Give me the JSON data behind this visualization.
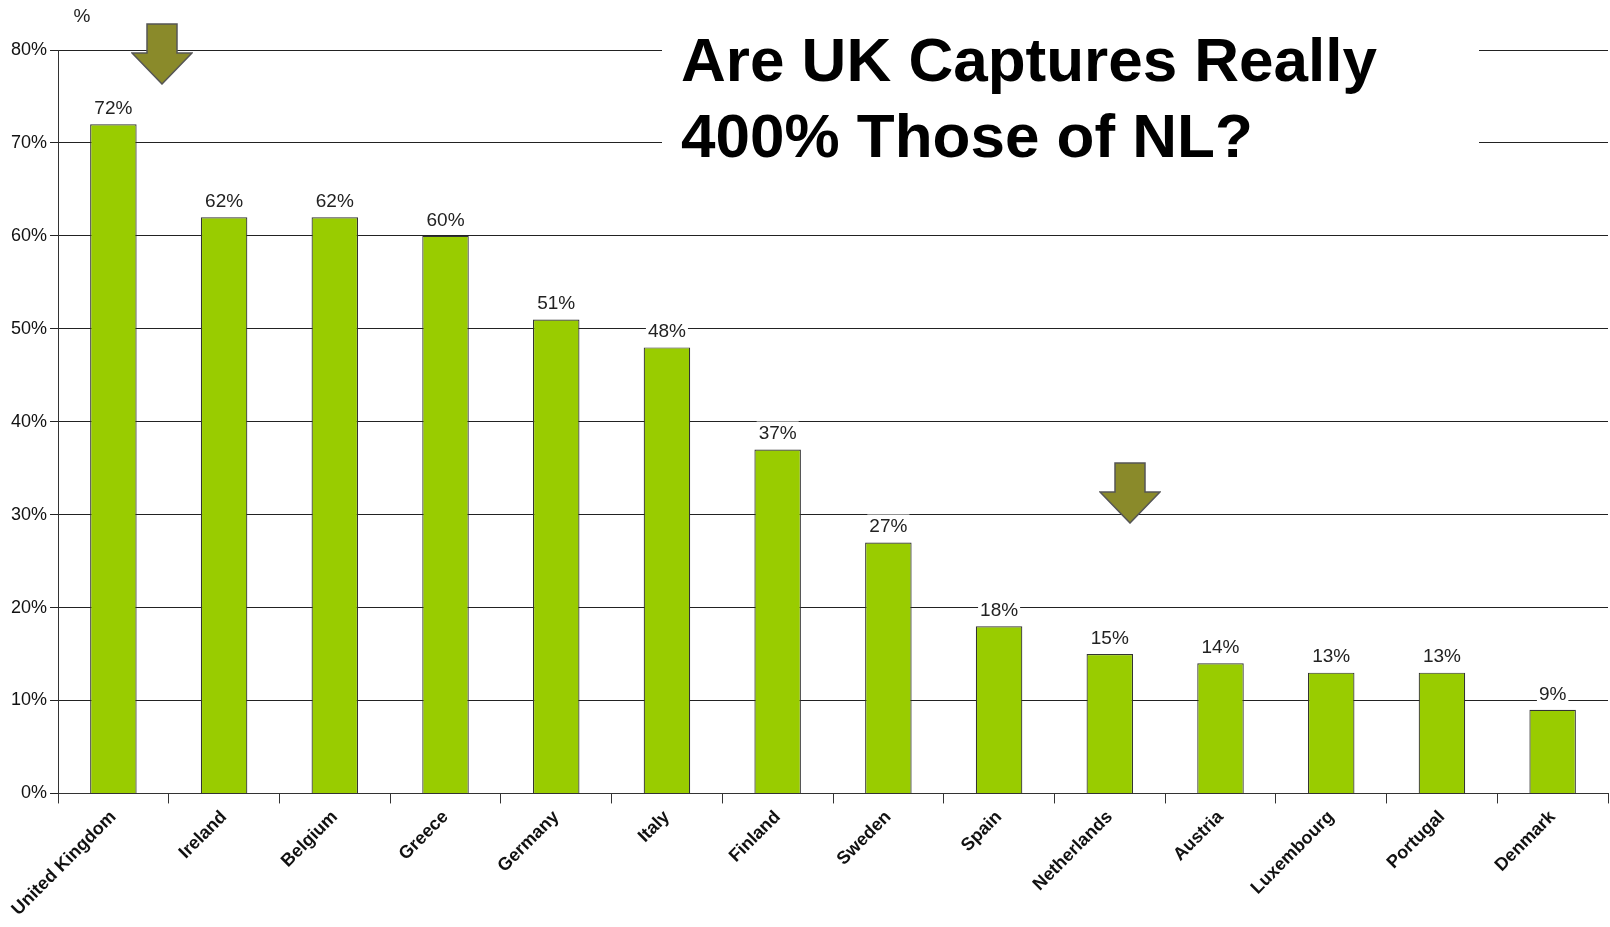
{
  "chart_data": {
    "type": "bar",
    "title": "Are UK Captures Really 400% Those of NL?",
    "ylabel": "%",
    "categories": [
      "United Kingdom",
      "Ireland",
      "Belgium",
      "Greece",
      "Germany",
      "Italy",
      "Finland",
      "Sweden",
      "Spain",
      "Netherlands",
      "Austria",
      "Luxembourg",
      "Portugal",
      "Denmark"
    ],
    "values": [
      72,
      62,
      62,
      60,
      51,
      48,
      37,
      27,
      18,
      15,
      14,
      13,
      13,
      9
    ],
    "value_labels": [
      "72%",
      "62%",
      "62%",
      "60%",
      "51%",
      "48%",
      "37%",
      "27%",
      "18%",
      "15%",
      "14%",
      "13%",
      "13%",
      "9%"
    ],
    "color": "#99cc00",
    "ylim": [
      0,
      80
    ],
    "yticks": [
      {
        "value": 0,
        "label": "0%"
      },
      {
        "value": 10,
        "label": "10%"
      },
      {
        "value": 20,
        "label": "20%"
      },
      {
        "value": 30,
        "label": "30%"
      },
      {
        "value": 40,
        "label": "40%"
      },
      {
        "value": 50,
        "label": "50%"
      },
      {
        "value": 60,
        "label": "60%"
      },
      {
        "value": 70,
        "label": "70%"
      },
      {
        "value": 80,
        "label": "80%"
      }
    ],
    "grid": "y",
    "legend": false
  }
}
